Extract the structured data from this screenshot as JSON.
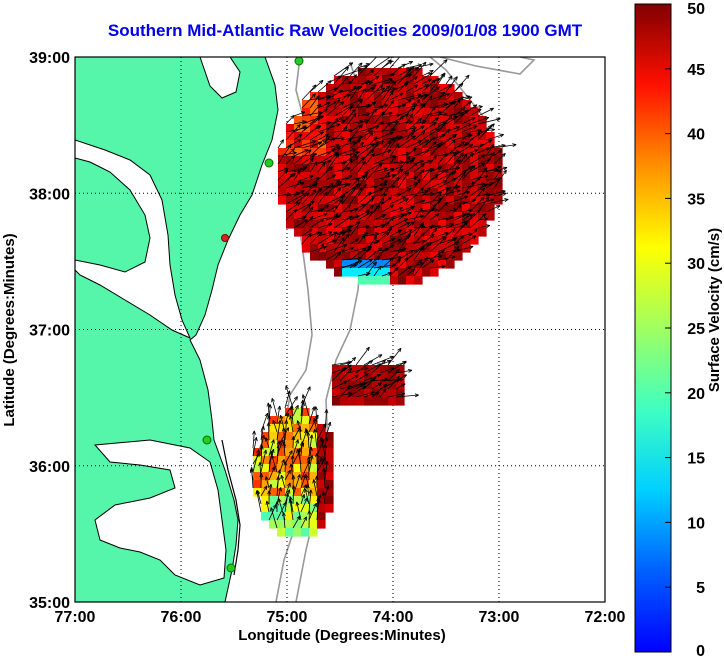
{
  "title": "Southern Mid-Atlantic Raw Velocities 2009/01/08 1900 GMT",
  "xlabel": "Longitude (Degrees:Minutes)",
  "ylabel": "Latitude (Degrees:Minutes)",
  "x_ticks": [
    "77:00",
    "76:00",
    "75:00",
    "74:00",
    "73:00",
    "72:00"
  ],
  "y_ticks": [
    "39:00",
    "38:00",
    "37:00",
    "36:00",
    "35:00"
  ],
  "colorbar": {
    "label": "Surface Velocity (cm/s)",
    "ticks": [
      "0",
      "5",
      "10",
      "15",
      "20",
      "25",
      "30",
      "35",
      "40",
      "45",
      "50"
    ],
    "range": [
      0,
      50
    ],
    "colormap": "jet"
  },
  "colors": {
    "land": "#55f5aa",
    "water": "#ffffff",
    "title": "#0000ee",
    "coastline": "#000000",
    "bathymetry": "#999999",
    "station": "#22cc22"
  }
}
